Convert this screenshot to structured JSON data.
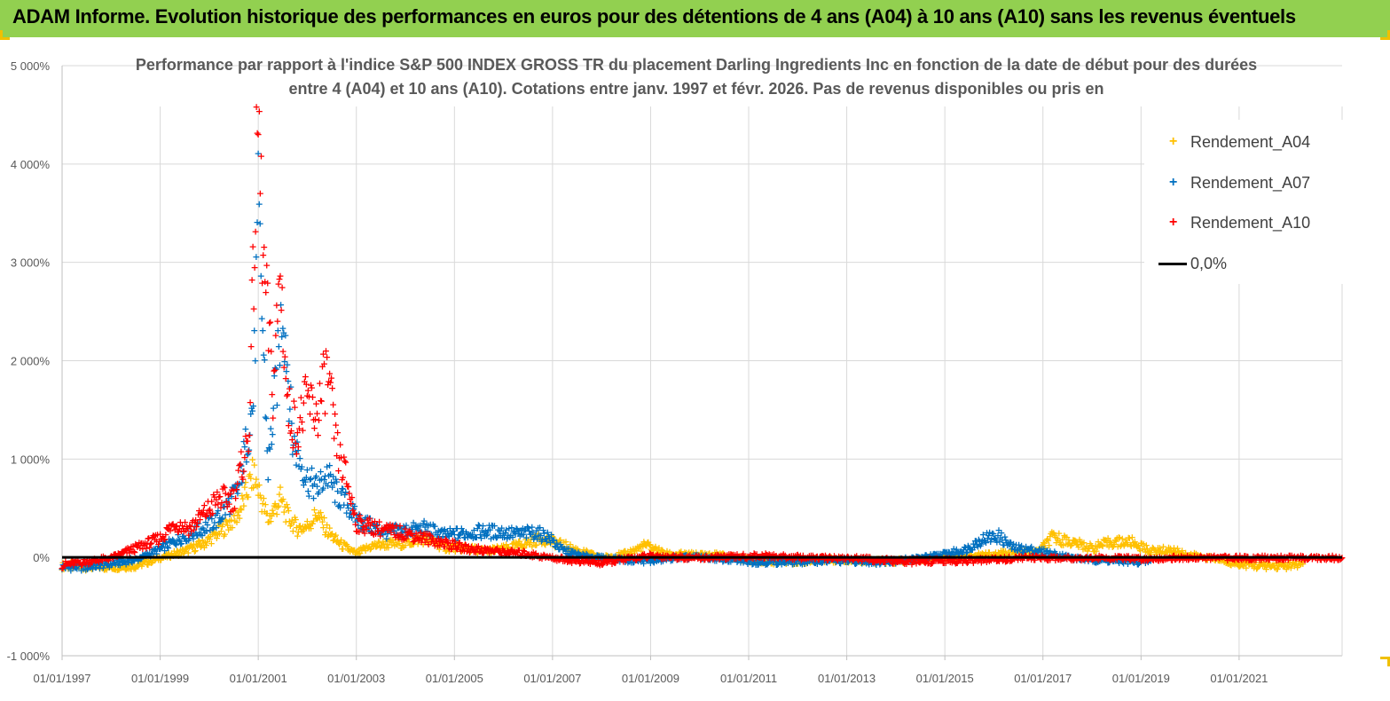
{
  "banner": {
    "title": "ADAM Informe. Evolution historique des performances en euros pour des détentions de 4 ans (A04) à 10 ans (A10) sans les revenus éventuels",
    "color": "#92d050"
  },
  "chart_data": {
    "type": "scatter",
    "title_line1": "Performance par rapport à l'indice S&P 500 INDEX GROSS TR  du placement Darling Ingredients Inc en fonction de la date de début pour des durées",
    "title_line2": "entre 4 (A04) et 10 ans (A10).  Cotations entre janv. 1997 et févr. 2026. Pas de revenus disponibles ou pris en",
    "xlabel": "",
    "ylabel": "",
    "ylim": [
      -1000,
      5000
    ],
    "y_ticks": [
      "-1 000%",
      "0%",
      "1 000%",
      "2 000%",
      "3 000%",
      "4 000%",
      "5 000%"
    ],
    "x_ticks": [
      "01/01/1997",
      "01/01/1999",
      "01/01/2001",
      "01/01/2003",
      "01/01/2005",
      "01/01/2007",
      "01/01/2009",
      "01/01/2011",
      "01/01/2013",
      "01/01/2015",
      "01/01/2017",
      "01/01/2019",
      "01/01/2021"
    ],
    "xlim": [
      1997.0,
      2023.1
    ],
    "grid": true,
    "legend_position": "top-right",
    "reference_line": {
      "name": "0,0%",
      "value": 0,
      "color": "#000000"
    },
    "series": [
      {
        "name": "Rendement_A04",
        "color": "#ffc000",
        "x": [
          1997.0,
          1997.5,
          1998.0,
          1998.5,
          1999.0,
          1999.5,
          1999.9,
          2000.3,
          2000.6,
          2000.9,
          2001.0,
          2001.2,
          2001.45,
          2001.6,
          2001.8,
          2002.0,
          2002.2,
          2002.4,
          2002.6,
          2002.8,
          2003.0,
          2003.3,
          2003.6,
          2004.0,
          2004.4,
          2004.8,
          2005.2,
          2005.6,
          2006.0,
          2006.4,
          2006.8,
          2007.2,
          2007.6,
          2008.0,
          2008.5,
          2008.9,
          2009.3,
          2009.8,
          2010.4,
          2011.0,
          2011.6,
          2012.2,
          2012.8,
          2013.4,
          2014.0,
          2014.6,
          2015.2,
          2015.8,
          2016.4,
          2016.9,
          2017.2,
          2017.6,
          2018.0,
          2018.4,
          2018.8,
          2019.2,
          2019.6,
          2020.0,
          2020.5,
          2021.0,
          2021.5,
          2022.0,
          2022.3
        ],
        "y": [
          -80,
          -90,
          -90,
          -80,
          0,
          70,
          150,
          300,
          450,
          850,
          700,
          380,
          600,
          420,
          300,
          320,
          450,
          280,
          170,
          100,
          40,
          120,
          140,
          150,
          200,
          110,
          100,
          70,
          90,
          140,
          200,
          130,
          60,
          0,
          40,
          130,
          40,
          30,
          30,
          -20,
          -40,
          -30,
          -20,
          -30,
          -40,
          -10,
          10,
          30,
          50,
          60,
          210,
          160,
          100,
          160,
          160,
          70,
          80,
          30,
          -10,
          -60,
          -80,
          -80,
          -60
        ]
      },
      {
        "name": "Rendement_A07",
        "color": "#0070c0",
        "x": [
          1997.0,
          1997.5,
          1998.0,
          1998.5,
          1999.0,
          1999.4,
          1999.8,
          2000.2,
          2000.6,
          2000.9,
          2001.0,
          2001.2,
          2001.4,
          2001.5,
          2001.7,
          2002.0,
          2002.2,
          2002.4,
          2002.6,
          2002.8,
          2003.0,
          2003.3,
          2003.6,
          2004.0,
          2004.4,
          2004.8,
          2005.2,
          2005.6,
          2006.0,
          2006.3,
          2006.6,
          2006.9,
          2007.2,
          2007.6,
          2008.0,
          2008.5,
          2009.0,
          2009.5,
          2010.0,
          2010.6,
          2011.2,
          2011.8,
          2012.4,
          2013.0,
          2013.6,
          2014.2,
          2014.8,
          2015.4,
          2015.8,
          2016.1,
          2016.4,
          2016.8,
          2017.2,
          2017.6,
          2018.0,
          2018.5,
          2019.0,
          2019.2
        ],
        "y": [
          -90,
          -90,
          -60,
          -20,
          90,
          200,
          280,
          400,
          700,
          1600,
          3480,
          900,
          1950,
          2650,
          1200,
          800,
          700,
          850,
          650,
          550,
          400,
          320,
          260,
          280,
          300,
          230,
          250,
          270,
          260,
          240,
          260,
          220,
          80,
          20,
          0,
          -20,
          -30,
          0,
          10,
          -20,
          -40,
          -40,
          -30,
          -30,
          -40,
          -20,
          20,
          80,
          200,
          220,
          100,
          80,
          40,
          0,
          -20,
          -30,
          -40,
          -30
        ]
      },
      {
        "name": "Rendement_A10",
        "color": "#ff0000",
        "x": [
          1997.0,
          1997.5,
          1998.0,
          1998.5,
          1999.0,
          1999.3,
          1999.6,
          1999.9,
          2000.2,
          2000.5,
          2000.8,
          2001.0,
          2001.1,
          2001.3,
          2001.45,
          2001.6,
          2001.8,
          2002.0,
          2002.2,
          2002.4,
          2002.6,
          2002.8,
          2003.0,
          2003.3,
          2003.6,
          2004.0,
          2004.4,
          2004.8,
          2005.2,
          2005.6,
          2006.0,
          2006.5,
          2007.0,
          2007.5,
          2008.0,
          2008.5,
          2009.0,
          2009.5,
          2010.0,
          2010.6,
          2011.2,
          2011.8,
          2012.4,
          2013.0,
          2013.6,
          2014.2,
          2014.8,
          2015.4,
          2016.0,
          2016.6,
          2017.2,
          2017.8,
          2018.4,
          2019.0,
          2019.6,
          2020.2,
          2020.8,
          2021.4,
          2022.0,
          2022.6,
          2023.1
        ],
        "y": [
          -70,
          -40,
          0,
          100,
          200,
          350,
          300,
          450,
          600,
          600,
          1200,
          4460,
          3000,
          1700,
          2920,
          1500,
          1300,
          1600,
          1450,
          1900,
          1100,
          800,
          350,
          320,
          280,
          250,
          200,
          150,
          100,
          80,
          60,
          40,
          0,
          -30,
          -50,
          -10,
          20,
          10,
          0,
          10,
          20,
          10,
          0,
          0,
          -20,
          -40,
          -30,
          -30,
          -20,
          0,
          0,
          0,
          0,
          -10,
          0,
          0,
          0,
          0,
          0,
          0,
          0
        ]
      }
    ]
  }
}
